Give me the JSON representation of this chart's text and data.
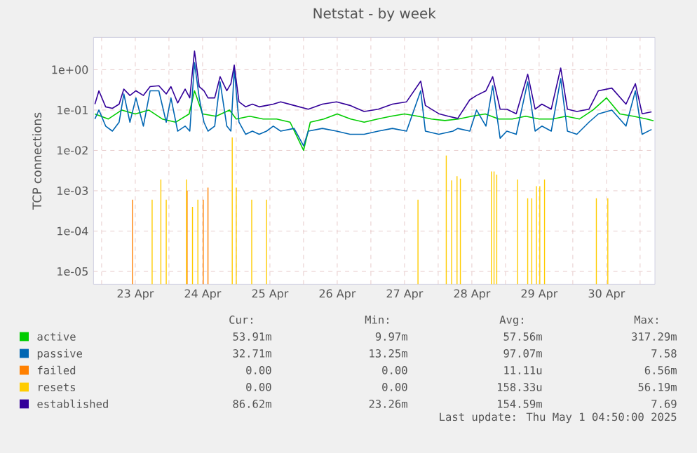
{
  "chart_data": {
    "type": "line",
    "title": "Netstat - by week",
    "ylabel": "TCP connections",
    "log": "y",
    "grid": true,
    "legend": "bottom",
    "xlim": [
      "2025-04-22T21:07",
      "2025-05-01T05:17"
    ],
    "ylim": [
      4.8e-06,
      6.3
    ],
    "xticks": [
      {
        "value": "2025-04-23",
        "label": null
      },
      {
        "value": "2025-04-23T12:00",
        "label": "23 Apr"
      },
      {
        "value": "2025-04-24",
        "label": null
      },
      {
        "value": "2025-04-24T12:00",
        "label": "24 Apr"
      },
      {
        "value": "2025-04-25",
        "label": null
      },
      {
        "value": "2025-04-25T12:00",
        "label": "25 Apr"
      },
      {
        "value": "2025-04-26",
        "label": null
      },
      {
        "value": "2025-04-26T12:00",
        "label": "26 Apr"
      },
      {
        "value": "2025-04-27",
        "label": null
      },
      {
        "value": "2025-04-27T12:00",
        "label": "27 Apr"
      },
      {
        "value": "2025-04-28",
        "label": null
      },
      {
        "value": "2025-04-28T12:00",
        "label": "28 Apr"
      },
      {
        "value": "2025-04-29",
        "label": null
      },
      {
        "value": "2025-04-29T12:00",
        "label": "29 Apr"
      },
      {
        "value": "2025-04-30",
        "label": null
      },
      {
        "value": "2025-04-30T12:00",
        "label": "30 Apr"
      },
      {
        "value": "2025-05-01",
        "label": null
      }
    ],
    "yticks": [
      {
        "value": 1e-05,
        "label": "1e-05"
      },
      {
        "value": 0.0001,
        "label": "1e-04"
      },
      {
        "value": 0.001,
        "label": "1e-03"
      },
      {
        "value": 0.01,
        "label": "1e-02"
      },
      {
        "value": 0.1,
        "label": "1e-01"
      },
      {
        "value": 1,
        "label": "1e+00"
      }
    ],
    "series": [
      {
        "name": "active",
        "color": "#00cc00",
        "x": [
          "2025-04-22T21:36",
          "2025-04-23T02:24",
          "2025-04-23T07:12",
          "2025-04-23T12:00",
          "2025-04-23T16:48",
          "2025-04-23T21:36",
          "2025-04-24T02:24",
          "2025-04-24T07:12",
          "2025-04-24T09:07",
          "2025-04-24T12:00",
          "2025-04-24T16:48",
          "2025-04-24T21:36",
          "2025-04-25T00:00",
          "2025-04-25T04:48",
          "2025-04-25T09:36",
          "2025-04-25T14:24",
          "2025-04-25T19:12",
          "2025-04-26T00:00",
          "2025-04-26T02:24",
          "2025-04-26T07:12",
          "2025-04-26T12:00",
          "2025-04-26T16:48",
          "2025-04-26T21:36",
          "2025-04-27T02:24",
          "2025-04-27T07:12",
          "2025-04-27T12:00",
          "2025-04-27T16:48",
          "2025-04-27T21:36",
          "2025-04-28T02:24",
          "2025-04-28T07:12",
          "2025-04-28T12:00",
          "2025-04-28T16:48",
          "2025-04-28T21:36",
          "2025-04-29T02:24",
          "2025-04-29T07:12",
          "2025-04-29T12:00",
          "2025-04-29T16:48",
          "2025-04-29T21:36",
          "2025-04-30T02:24",
          "2025-04-30T07:12",
          "2025-04-30T12:00",
          "2025-04-30T16:48",
          "2025-04-30T21:36",
          "2025-05-01T02:24",
          "2025-05-01T04:48"
        ],
        "values": [
          0.08,
          0.06,
          0.1,
          0.08,
          0.1,
          0.06,
          0.05,
          0.08,
          0.3,
          0.08,
          0.07,
          0.1,
          0.06,
          0.07,
          0.06,
          0.06,
          0.05,
          0.01,
          0.05,
          0.06,
          0.08,
          0.06,
          0.05,
          0.06,
          0.07,
          0.08,
          0.07,
          0.06,
          0.055,
          0.06,
          0.07,
          0.08,
          0.06,
          0.06,
          0.07,
          0.06,
          0.06,
          0.07,
          0.06,
          0.1,
          0.2,
          0.08,
          0.07,
          0.06,
          0.054
        ]
      },
      {
        "name": "passive",
        "color": "#0066b3",
        "x": [
          "2025-04-22T21:36",
          "2025-04-22T23:02",
          "2025-04-23T01:26",
          "2025-04-23T03:50",
          "2025-04-23T06:14",
          "2025-04-23T07:55",
          "2025-04-23T10:05",
          "2025-04-23T12:14",
          "2025-04-23T14:53",
          "2025-04-23T17:17",
          "2025-04-23T20:24",
          "2025-04-23T23:02",
          "2025-04-24T00:43",
          "2025-04-24T03:07",
          "2025-04-24T05:46",
          "2025-04-24T07:26",
          "2025-04-24T09:07",
          "2025-04-24T10:48",
          "2025-04-24T12:29",
          "2025-04-24T13:55",
          "2025-04-24T16:19",
          "2025-04-24T18:14",
          "2025-04-24T20:38",
          "2025-04-24T22:05",
          "2025-04-24T23:17",
          "2025-04-25T00:58",
          "2025-04-25T03:22",
          "2025-04-25T05:46",
          "2025-04-25T08:10",
          "2025-04-25T10:48",
          "2025-04-25T13:12",
          "2025-04-25T15:50",
          "2025-04-25T20:38",
          "2025-04-26T00:00",
          "2025-04-26T01:41",
          "2025-04-26T06:43",
          "2025-04-26T11:46",
          "2025-04-26T16:34",
          "2025-04-26T21:36",
          "2025-04-27T02:38",
          "2025-04-27T07:41",
          "2025-04-27T12:43",
          "2025-04-27T17:46",
          "2025-04-27T19:26",
          "2025-04-28T00:14",
          "2025-04-28T05:17",
          "2025-04-28T06:58",
          "2025-04-28T11:17",
          "2025-04-28T13:41",
          "2025-04-28T17:02",
          "2025-04-28T19:26",
          "2025-04-28T22:05",
          "2025-04-29T00:29",
          "2025-04-29T03:50",
          "2025-04-29T07:55",
          "2025-04-29T10:34",
          "2025-04-29T12:58",
          "2025-04-29T16:19",
          "2025-04-29T19:41",
          "2025-04-29T22:05",
          "2025-04-30T01:26",
          "2025-04-30T05:46",
          "2025-04-30T09:07",
          "2025-04-30T13:55",
          "2025-04-30T18:58",
          "2025-04-30T22:19",
          "2025-05-01T00:43",
          "2025-05-01T04:05"
        ],
        "values": [
          0.06,
          0.1,
          0.04,
          0.03,
          0.05,
          0.25,
          0.05,
          0.2,
          0.04,
          0.3,
          0.3,
          0.05,
          0.2,
          0.03,
          0.04,
          0.03,
          1.5,
          0.2,
          0.05,
          0.03,
          0.04,
          0.5,
          0.04,
          0.03,
          1.0,
          0.05,
          0.025,
          0.03,
          0.025,
          0.03,
          0.04,
          0.03,
          0.035,
          0.013,
          0.03,
          0.035,
          0.03,
          0.025,
          0.025,
          0.03,
          0.035,
          0.03,
          0.3,
          0.03,
          0.025,
          0.03,
          0.035,
          0.03,
          0.1,
          0.04,
          0.4,
          0.02,
          0.03,
          0.025,
          0.5,
          0.03,
          0.04,
          0.03,
          0.6,
          0.03,
          0.025,
          0.05,
          0.08,
          0.1,
          0.04,
          0.3,
          0.025,
          0.033
        ]
      },
      {
        "name": "failed",
        "color": "#ff8000",
        "type": "bar",
        "x": [
          "2025-04-23T11:02",
          "2025-04-24T06:29",
          "2025-04-24T12:14",
          "2025-04-24T13:55"
        ],
        "values": [
          0.0006,
          0.001,
          0.0006,
          0.0012
        ]
      },
      {
        "name": "resets",
        "color": "#ffcc00",
        "type": "bar",
        "x": [
          "2025-04-23T18:00",
          "2025-04-23T21:07",
          "2025-04-23T23:02",
          "2025-04-24T06:14",
          "2025-04-24T08:24",
          "2025-04-24T10:19",
          "2025-04-24T22:34",
          "2025-04-25T00:00",
          "2025-04-25T05:31",
          "2025-04-25T10:48",
          "2025-04-27T16:48",
          "2025-04-28T02:53",
          "2025-04-28T04:48",
          "2025-04-28T06:43",
          "2025-04-28T07:55",
          "2025-04-28T18:58",
          "2025-04-28T19:55",
          "2025-04-28T20:53",
          "2025-04-29T04:19",
          "2025-04-29T07:55",
          "2025-04-29T09:22",
          "2025-04-29T11:02",
          "2025-04-29T12:14",
          "2025-04-29T13:55",
          "2025-04-30T08:24",
          "2025-04-30T12:29"
        ],
        "values": [
          0.0006,
          0.0019,
          0.0006,
          0.0019,
          0.0004,
          0.0006,
          0.021,
          0.0012,
          0.0006,
          0.0006,
          0.0006,
          0.0075,
          0.0018,
          0.0023,
          0.002,
          0.003,
          0.003,
          0.0025,
          0.0019,
          0.00065,
          0.00065,
          0.0013,
          0.0013,
          0.0019,
          0.00065,
          0.00065
        ]
      },
      {
        "name": "established",
        "color": "#330099",
        "x": [
          "2025-04-22T21:36",
          "2025-04-22T23:02",
          "2025-04-23T01:26",
          "2025-04-23T03:50",
          "2025-04-23T06:14",
          "2025-04-23T07:55",
          "2025-04-23T10:05",
          "2025-04-23T12:14",
          "2025-04-23T14:53",
          "2025-04-23T17:17",
          "2025-04-23T20:24",
          "2025-04-23T23:02",
          "2025-04-24T00:43",
          "2025-04-24T03:07",
          "2025-04-24T05:46",
          "2025-04-24T07:26",
          "2025-04-24T09:07",
          "2025-04-24T10:48",
          "2025-04-24T12:29",
          "2025-04-24T13:55",
          "2025-04-24T16:19",
          "2025-04-24T18:14",
          "2025-04-24T20:38",
          "2025-04-24T22:05",
          "2025-04-24T23:17",
          "2025-04-25T00:58",
          "2025-04-25T03:22",
          "2025-04-25T05:46",
          "2025-04-25T08:10",
          "2025-04-25T10:48",
          "2025-04-25T13:12",
          "2025-04-25T15:50",
          "2025-04-25T20:38",
          "2025-04-26T01:41",
          "2025-04-26T06:43",
          "2025-04-26T11:46",
          "2025-04-26T16:34",
          "2025-04-26T21:36",
          "2025-04-27T02:38",
          "2025-04-27T07:41",
          "2025-04-27T12:43",
          "2025-04-27T17:46",
          "2025-04-27T19:26",
          "2025-04-28T00:14",
          "2025-04-28T03:36",
          "2025-04-28T06:58",
          "2025-04-28T11:17",
          "2025-04-28T13:41",
          "2025-04-28T17:02",
          "2025-04-28T19:26",
          "2025-04-28T22:05",
          "2025-04-29T00:29",
          "2025-04-29T03:50",
          "2025-04-29T07:55",
          "2025-04-29T10:34",
          "2025-04-29T12:58",
          "2025-04-29T16:19",
          "2025-04-29T19:41",
          "2025-04-29T22:05",
          "2025-04-30T01:26",
          "2025-04-30T05:46",
          "2025-04-30T09:07",
          "2025-04-30T13:55",
          "2025-04-30T18:58",
          "2025-04-30T22:19",
          "2025-05-01T00:43",
          "2025-05-01T04:05"
        ],
        "values": [
          0.14,
          0.3,
          0.12,
          0.11,
          0.14,
          0.33,
          0.23,
          0.3,
          0.23,
          0.38,
          0.4,
          0.25,
          0.38,
          0.15,
          0.33,
          0.2,
          2.9,
          0.38,
          0.3,
          0.2,
          0.2,
          0.67,
          0.3,
          0.45,
          1.3,
          0.16,
          0.12,
          0.14,
          0.12,
          0.13,
          0.14,
          0.16,
          0.13,
          0.105,
          0.14,
          0.16,
          0.13,
          0.092,
          0.105,
          0.14,
          0.16,
          0.52,
          0.13,
          0.081,
          0.07,
          0.062,
          0.18,
          0.23,
          0.3,
          0.67,
          0.105,
          0.105,
          0.081,
          0.77,
          0.105,
          0.14,
          0.105,
          1.1,
          0.105,
          0.092,
          0.105,
          0.3,
          0.35,
          0.14,
          0.45,
          0.081,
          0.09
        ]
      }
    ],
    "annotations": [
      "Cur:",
      "Min:",
      "Avg:",
      "Max:",
      "53.91m",
      "9.97m",
      "57.56m",
      "317.29m",
      "32.71m",
      "13.25m",
      "97.07m",
      "7.58",
      "0.00",
      "0.00",
      "11.11u",
      "6.56m",
      "0.00",
      "0.00",
      "158.33u",
      "56.19m",
      "86.62m",
      "23.26m",
      "154.59m",
      "7.69",
      "Last update: Thu May  1 04:50:00 2025"
    ]
  }
}
